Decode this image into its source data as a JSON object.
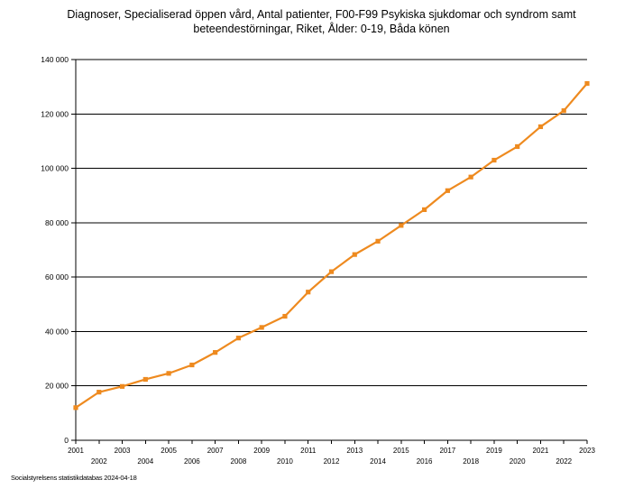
{
  "chart_data": {
    "type": "line",
    "title": [
      "Diagnoser, Specialiserad öppen vård, Antal patienter, F00-F99 Psykiska sjukdomar och syndrom samt",
      "beteendestörningar, Riket, Ålder: 0-19, Båda könen"
    ],
    "xlabel": "",
    "ylabel": "",
    "x": [
      "2001",
      "2002",
      "2003",
      "2004",
      "2005",
      "2006",
      "2007",
      "2008",
      "2009",
      "2010",
      "2011",
      "2012",
      "2013",
      "2014",
      "2015",
      "2016",
      "2017",
      "2018",
      "2019",
      "2020",
      "2021",
      "2022",
      "2023"
    ],
    "series": [
      {
        "values": [
          12000,
          17700,
          19800,
          22400,
          24600,
          27700,
          32300,
          37600,
          41500,
          45600,
          54500,
          62000,
          68300,
          73200,
          79000,
          84800,
          91800,
          96800,
          103000,
          108000,
          115300,
          121200,
          131200
        ],
        "color": "#ee8a1f"
      }
    ],
    "ylim": [
      0,
      140000
    ],
    "yticks": [
      0,
      20000,
      40000,
      60000,
      80000,
      100000,
      120000,
      140000
    ],
    "ytick_labels": [
      "0",
      "20 000",
      "40 000",
      "60 000",
      "80 000",
      "100 000",
      "120 000",
      "140 000"
    ],
    "grid": true,
    "legend": "none"
  },
  "footer": {
    "source": "Socialstyrelsens statistikdatabas 2024-04-18"
  }
}
